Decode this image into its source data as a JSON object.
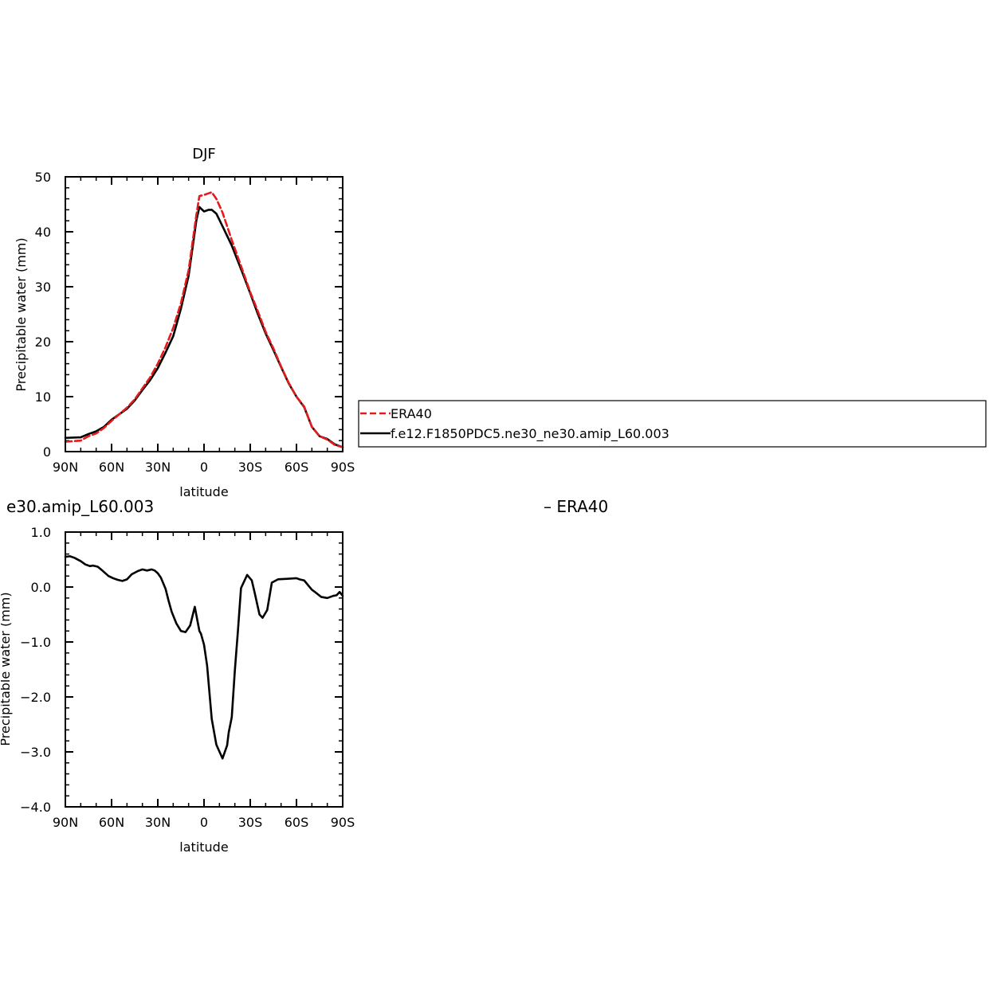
{
  "chart_data": [
    {
      "type": "line",
      "title": "DJF",
      "xlabel": "latitude",
      "ylabel": "Precipitable water (mm)",
      "xlim": [
        -90,
        90
      ],
      "ylim": [
        0,
        50
      ],
      "x_ticks": [
        -90,
        -60,
        -30,
        0,
        30,
        60,
        90
      ],
      "x_tick_labels": [
        "90N",
        "60N",
        "30N",
        "0",
        "30S",
        "60S",
        "90S"
      ],
      "y_ticks": [
        0,
        10,
        20,
        30,
        40,
        50
      ],
      "y_tick_labels": [
        "0",
        "10",
        "20",
        "30",
        "40",
        "50"
      ],
      "legend_position": "right",
      "series": [
        {
          "name": "ERA40",
          "color": "#e41a1c",
          "dash": "dashed",
          "x": [
            -90,
            -80,
            -75,
            -70,
            -65,
            -60,
            -55,
            -50,
            -45,
            -40,
            -35,
            -30,
            -25,
            -20,
            -15,
            -10,
            -5,
            -3,
            0,
            3,
            5,
            8,
            12,
            18,
            25,
            30,
            35,
            40,
            45,
            50,
            55,
            60,
            65,
            70,
            75,
            80,
            85,
            90
          ],
          "y": [
            1.8,
            2.0,
            2.8,
            3.3,
            4.3,
            5.6,
            6.8,
            8.0,
            9.5,
            11.5,
            13.5,
            16.0,
            19.0,
            22.5,
            27.0,
            33.0,
            43.0,
            46.5,
            46.7,
            47.0,
            47.2,
            46.0,
            43.5,
            38.5,
            33.0,
            29.0,
            25.5,
            21.8,
            18.8,
            15.5,
            12.5,
            10.0,
            8.2,
            4.5,
            2.8,
            2.2,
            1.2,
            0.8
          ]
        },
        {
          "name": "f.e12.F1850PDC5.ne30_ne30.amip_L60.003",
          "color": "#000000",
          "dash": "solid",
          "x": [
            -90,
            -80,
            -75,
            -70,
            -65,
            -60,
            -55,
            -50,
            -45,
            -40,
            -35,
            -30,
            -25,
            -20,
            -15,
            -10,
            -5,
            -3,
            0,
            3,
            5,
            8,
            12,
            18,
            25,
            30,
            35,
            40,
            45,
            50,
            55,
            60,
            65,
            70,
            75,
            80,
            85,
            90
          ],
          "y": [
            2.5,
            2.6,
            3.2,
            3.7,
            4.5,
            5.8,
            6.8,
            7.8,
            9.3,
            11.2,
            13.0,
            15.2,
            18.0,
            21.0,
            26.0,
            32.0,
            42.0,
            44.5,
            43.7,
            44.0,
            44.0,
            43.3,
            41.0,
            37.5,
            32.5,
            28.8,
            25.0,
            21.5,
            18.5,
            15.4,
            12.4,
            10.0,
            8.1,
            4.5,
            2.8,
            2.3,
            1.3,
            0.8
          ]
        }
      ]
    },
    {
      "type": "line",
      "title_left": "e30.amip_L60.003",
      "title_right": "– ERA40",
      "xlabel": "latitude",
      "ylabel": "Precipitable water (mm)",
      "xlim": [
        -90,
        90
      ],
      "ylim": [
        -4.0,
        1.0
      ],
      "x_ticks": [
        -90,
        -60,
        -30,
        0,
        30,
        60,
        90
      ],
      "x_tick_labels": [
        "90N",
        "60N",
        "30N",
        "0",
        "30S",
        "60S",
        "90S"
      ],
      "y_ticks": [
        -4.0,
        -3.0,
        -2.0,
        -1.0,
        0.0,
        1.0
      ],
      "y_tick_labels": [
        "−4.0",
        "−3.0",
        "−2.0",
        "−1.0",
        "0.0",
        "1.0"
      ],
      "series": [
        {
          "color": "#000000",
          "dash": "solid",
          "x": [
            -90,
            -87,
            -84,
            -80,
            -77,
            -74,
            -72,
            -69,
            -66,
            -62,
            -59,
            -56,
            -53,
            -50,
            -47,
            -43,
            -40,
            -37,
            -34,
            -32,
            -30,
            -28,
            -25,
            -23,
            -21,
            -18,
            -15,
            -12,
            -9,
            -6,
            -3,
            -2,
            0,
            2,
            5,
            8,
            12,
            15,
            16,
            18,
            20,
            22,
            24,
            28,
            31,
            33,
            36,
            38,
            41,
            44,
            48,
            54,
            60,
            62,
            65,
            70,
            72,
            76,
            80,
            84,
            86,
            88,
            90
          ],
          "y": [
            0.55,
            0.56,
            0.53,
            0.47,
            0.41,
            0.38,
            0.39,
            0.37,
            0.3,
            0.2,
            0.16,
            0.13,
            0.11,
            0.14,
            0.23,
            0.29,
            0.32,
            0.3,
            0.32,
            0.3,
            0.25,
            0.17,
            -0.03,
            -0.25,
            -0.45,
            -0.66,
            -0.8,
            -0.82,
            -0.7,
            -0.36,
            -0.8,
            -0.85,
            -1.05,
            -1.43,
            -2.4,
            -2.87,
            -3.12,
            -2.88,
            -2.65,
            -2.37,
            -1.52,
            -0.8,
            -0.02,
            0.22,
            0.12,
            -0.12,
            -0.5,
            -0.56,
            -0.42,
            0.08,
            0.14,
            0.15,
            0.16,
            0.14,
            0.12,
            -0.05,
            -0.09,
            -0.18,
            -0.2,
            -0.16,
            -0.15,
            -0.09,
            -0.16
          ]
        }
      ]
    }
  ],
  "colors": {
    "era40": "#e41a1c",
    "model": "#000000",
    "axis": "#000000"
  }
}
